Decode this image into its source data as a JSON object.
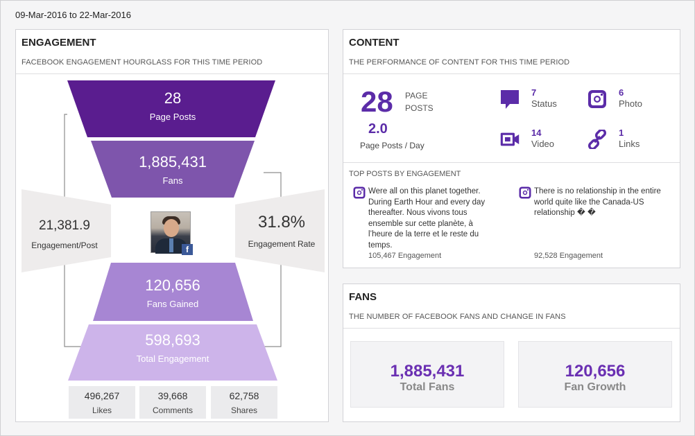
{
  "date_range": "09-Mar-2016 to 22-Mar-2016",
  "engagement": {
    "title": "ENGAGEMENT",
    "subtitle": "FACEBOOK ENGAGEMENT HOURGLASS FOR THIS TIME PERIOD",
    "page_posts": {
      "value": "28",
      "label": "Page Posts"
    },
    "fans": {
      "value": "1,885,431",
      "label": "Fans"
    },
    "engagement_per_post": {
      "value": "21,381.9",
      "label": "Engagement/Post"
    },
    "engagement_rate": {
      "value": "31.8%",
      "label": "Engagement Rate"
    },
    "fans_gained": {
      "value": "120,656",
      "label": "Fans Gained"
    },
    "total_engagement": {
      "value": "598,693",
      "label": "Total Engagement"
    },
    "breakdown": [
      {
        "value": "496,267",
        "label": "Likes"
      },
      {
        "value": "39,668",
        "label": "Comments"
      },
      {
        "value": "62,758",
        "label": "Shares"
      }
    ],
    "colors": {
      "level1": "#5a1d8f",
      "level2": "#7e55ac",
      "level3": "#a786d3",
      "level4": "#cdb4ea",
      "side": "#eeecec"
    }
  },
  "content": {
    "title": "CONTENT",
    "subtitle": "THE PERFORMANCE OF CONTENT FOR THIS TIME PERIOD",
    "page_posts_value": "28",
    "page_posts_label_1": "PAGE",
    "page_posts_label_2": "POSTS",
    "posts_per_day_value": "2.0",
    "posts_per_day_label": "Page Posts / Day",
    "types": [
      {
        "icon": "status-icon",
        "value": "7",
        "label": "Status"
      },
      {
        "icon": "photo-icon",
        "value": "6",
        "label": "Photo"
      },
      {
        "icon": "video-icon",
        "value": "14",
        "label": "Video"
      },
      {
        "icon": "link-icon",
        "value": "1",
        "label": "Links"
      }
    ],
    "top_posts_title": "TOP POSTS BY ENGAGEMENT",
    "top_posts": [
      {
        "lines": [
          "Were all on this planet together.",
          "During Earth Hour and every day",
          "thereafter. Nous vivons tous",
          "ensemble sur cette planète, à",
          "l’heure de la terre et le reste du",
          "temps."
        ],
        "engagement": "105,467 Engagement"
      },
      {
        "lines": [
          "There is no relationship in the entire",
          "world quite like the Canada-US",
          "relationship � �"
        ],
        "engagement": "92,528 Engagement"
      }
    ],
    "accent": "#5b2ca8"
  },
  "fans": {
    "title": "FANS",
    "subtitle": "THE NUMBER OF FACEBOOK FANS AND CHANGE IN FANS",
    "total_fans": {
      "value": "1,885,431",
      "label": "Total Fans"
    },
    "fan_growth": {
      "value": "120,656",
      "label": "Fan Growth"
    }
  }
}
